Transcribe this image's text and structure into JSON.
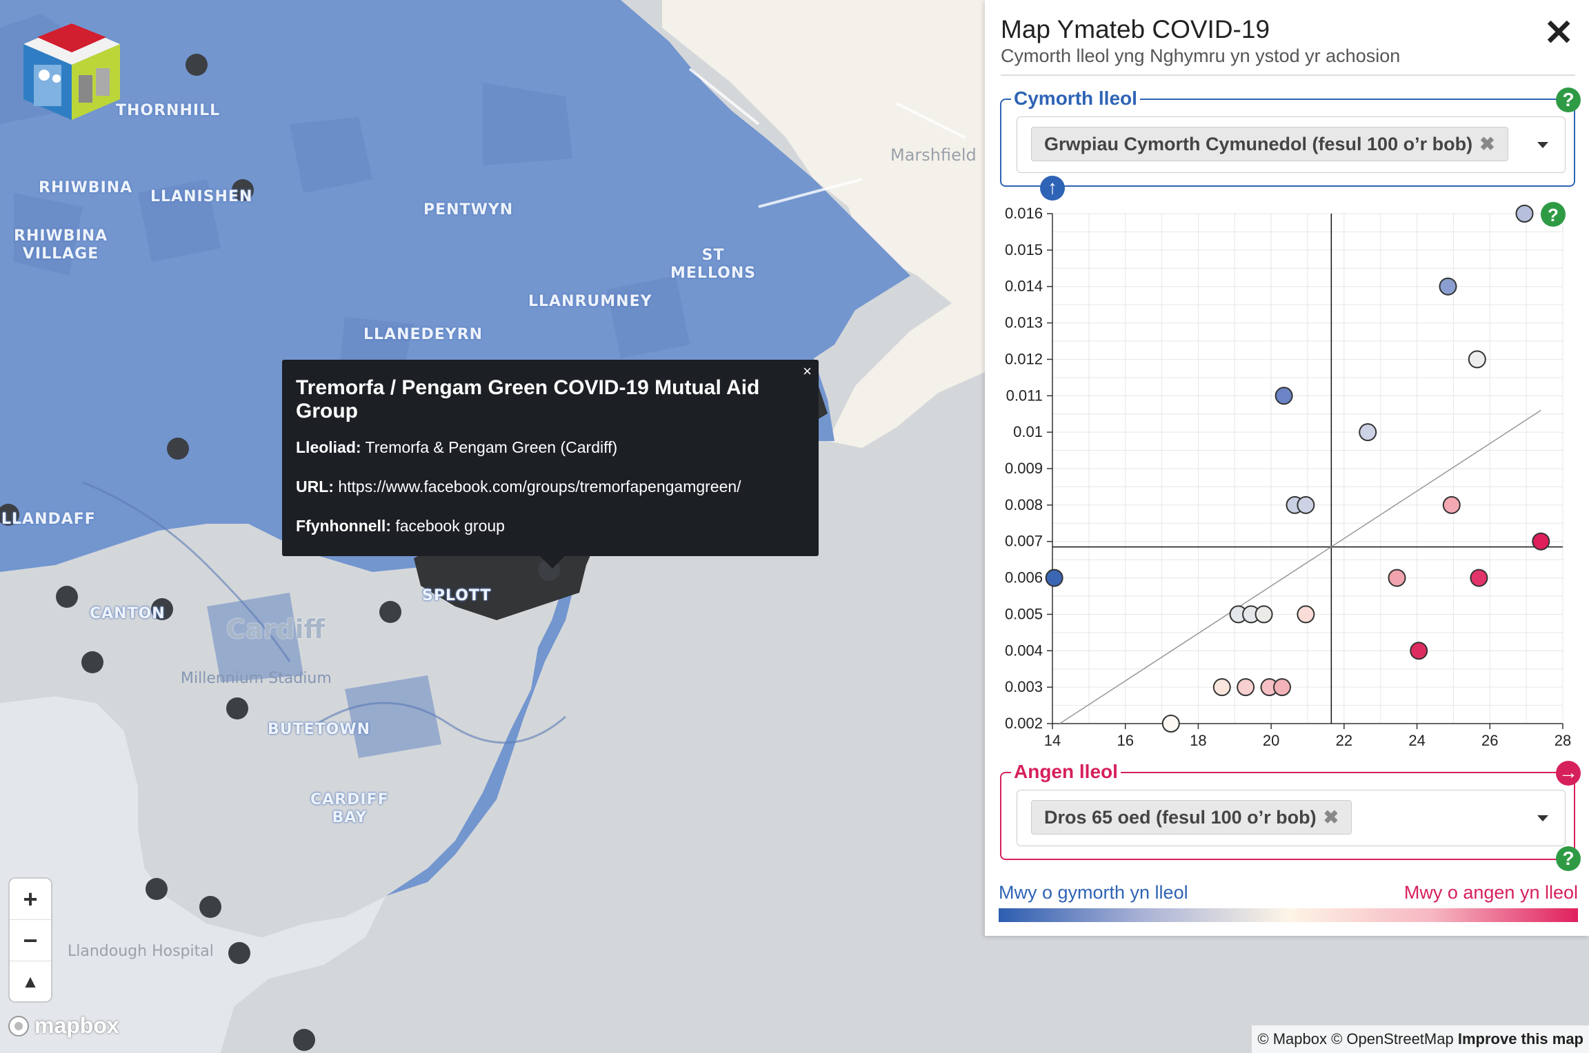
{
  "map": {
    "places": {
      "thornhill": "THORNHILL",
      "rhiwbina": "RHIWBINA",
      "llanishen": "LLANISHEN",
      "rhiwbina_village": "RHIWBINA\nVILLAGE",
      "pentwyn": "PENTWYN",
      "st_mellons": "ST\nMELLONS",
      "llanrumney": "LLANRUMNEY",
      "llanedeyrn": "LLANEDEYRN",
      "llandaff": "LLANDAFF",
      "canton": "CANTON",
      "cardiff": "Cardiff",
      "millennium_stadium": "Millennium Stadium",
      "butetown": "BUTETOWN",
      "cardiff_bay": "CARDIFF\nBAY",
      "splott": "SPLOTT",
      "marshfield": "Marshfield",
      "llandough_hospital": "Llandough Hospital"
    },
    "popup": {
      "title": "Tremorfa / Pengam Green COVID-19 Mutual Aid Group",
      "location_label": "Lleoliad:",
      "location_value": "Tremorfa & Pengam Green (Cardiff)",
      "url_label": "URL:",
      "url_value": "https://www.facebook.com/groups/tremorfapengamgreen/",
      "source_label": "Ffynhonnell:",
      "source_value": "facebook group",
      "close": "×"
    },
    "zoom": {
      "in": "+",
      "out": "−",
      "compass": "▲"
    },
    "mapbox_logo": "mapbox",
    "attribution": {
      "text": "© Mapbox © OpenStreetMap",
      "improve": "Improve this map"
    },
    "colors": {
      "region": "#7396cf",
      "region_dark": "#6486c3",
      "sea": "#d4d7da",
      "land": "#f4f1ea",
      "marker": "#3c3f44"
    }
  },
  "panel": {
    "title": "Map Ymateb COVID-19",
    "subtitle": "Cymorth lleol yng Nghymru yn ystod yr achosion",
    "close": "✕",
    "support": {
      "legend": "Cymorth lleol",
      "selected": "Grwpiau Cymorth Cymunedol (fesul 100 o’r bob)",
      "remove": "✖",
      "color": "#2e63b5"
    },
    "need": {
      "legend": "Angen lleol",
      "selected": "Dros 65 oed (fesul 100 o’r bob)",
      "remove": "✖",
      "color": "#d6205b"
    },
    "help_icon": "?",
    "up_icon": "↑",
    "right_icon": "→",
    "scale_left": "Mwy o gymorth yn lleol",
    "scale_right": "Mwy o angen yn lleol"
  },
  "chart_data": {
    "type": "scatter",
    "xlim": [
      14,
      28
    ],
    "ylim": [
      0.002,
      0.016
    ],
    "x_ticks": [
      "14",
      "16",
      "18",
      "20",
      "22",
      "24",
      "26",
      "28"
    ],
    "y_ticks": [
      "0.002",
      "0.003",
      "0.004",
      "0.005",
      "0.006",
      "0.007",
      "0.008",
      "0.009",
      "0.01",
      "0.011",
      "0.012",
      "0.013",
      "0.014",
      "0.015",
      "0.016"
    ],
    "mean_x": 21.65,
    "mean_y": 0.00685,
    "trend": {
      "x0": 14.2,
      "y0": 0.002,
      "x1": 27.4,
      "y1": 0.0106
    },
    "points": [
      {
        "x": 14.05,
        "y": 0.006,
        "color": "#3b66b3"
      },
      {
        "x": 17.25,
        "y": 0.002,
        "color": "#fbf9f2"
      },
      {
        "x": 18.65,
        "y": 0.003,
        "color": "#fbe6dd"
      },
      {
        "x": 19.3,
        "y": 0.003,
        "color": "#f8d0cf"
      },
      {
        "x": 19.95,
        "y": 0.003,
        "color": "#f6c0c4"
      },
      {
        "x": 20.3,
        "y": 0.003,
        "color": "#f3b2b8"
      },
      {
        "x": 19.1,
        "y": 0.005,
        "color": "#e3e6ea"
      },
      {
        "x": 19.45,
        "y": 0.005,
        "color": "#e6e7ea"
      },
      {
        "x": 19.8,
        "y": 0.005,
        "color": "#eceae6"
      },
      {
        "x": 20.95,
        "y": 0.005,
        "color": "#f9dcd6"
      },
      {
        "x": 20.35,
        "y": 0.011,
        "color": "#6a84c6"
      },
      {
        "x": 20.65,
        "y": 0.008,
        "color": "#c9d0e3"
      },
      {
        "x": 20.95,
        "y": 0.008,
        "color": "#ccd2e4"
      },
      {
        "x": 22.65,
        "y": 0.01,
        "color": "#cdd3e5"
      },
      {
        "x": 23.45,
        "y": 0.006,
        "color": "#f1a3ae"
      },
      {
        "x": 24.05,
        "y": 0.004,
        "color": "#dd2c5f"
      },
      {
        "x": 24.85,
        "y": 0.014,
        "color": "#8a9fcf"
      },
      {
        "x": 24.95,
        "y": 0.008,
        "color": "#f3a8b2"
      },
      {
        "x": 25.65,
        "y": 0.012,
        "color": "#eeeeee"
      },
      {
        "x": 25.7,
        "y": 0.006,
        "color": "#e2336a"
      },
      {
        "x": 26.95,
        "y": 0.016,
        "color": "#b6c0dd"
      },
      {
        "x": 27.4,
        "y": 0.007,
        "color": "#de1f5c"
      }
    ]
  }
}
